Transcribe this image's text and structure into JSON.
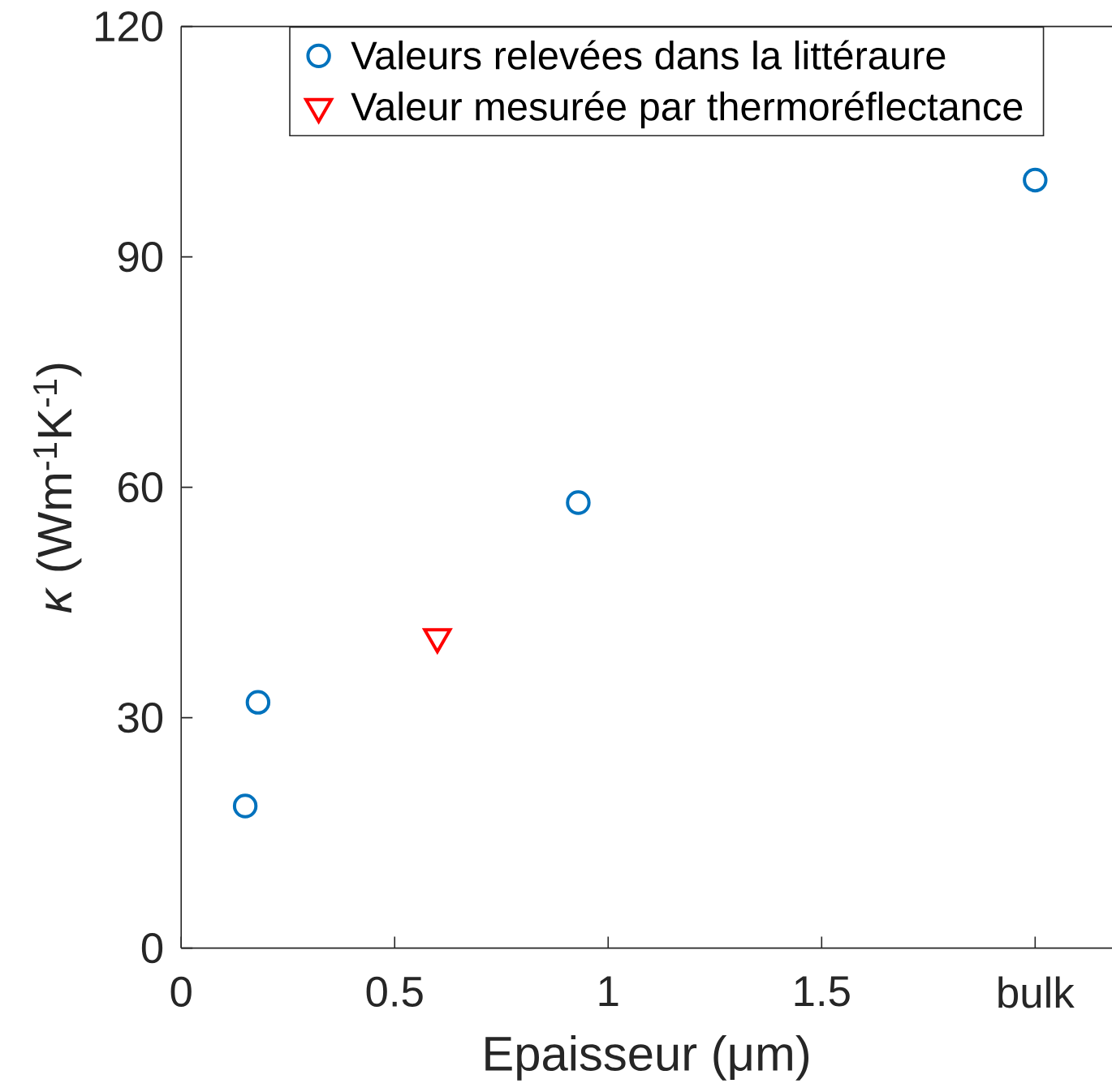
{
  "chart_data": {
    "type": "scatter",
    "xlabel": "Epaisseur (μm)",
    "ylabel": "*κ* (Wm$^{-1}$K$^{-1}$)",
    "xlim": [
      0,
      2.18
    ],
    "ylim": [
      0,
      120
    ],
    "xticks": [
      0,
      0.5,
      1,
      1.5,
      {
        "value": 2,
        "label": "bulk"
      }
    ],
    "yticks": [
      0,
      30,
      60,
      90,
      120
    ],
    "legend": "top",
    "series": [
      {
        "name": "Valeurs relevées dans la littéraure",
        "color": "#0072bd",
        "marker": "circle",
        "x": [
          0.15,
          0.18,
          0.93,
          2
        ],
        "values": [
          18.5,
          32,
          58,
          100
        ]
      },
      {
        "name": "Valeur mesurée par thermoréflectance",
        "color": "#ff0000",
        "marker": "triangle",
        "x": [
          0.6
        ],
        "values": [
          40.5
        ]
      }
    ]
  }
}
